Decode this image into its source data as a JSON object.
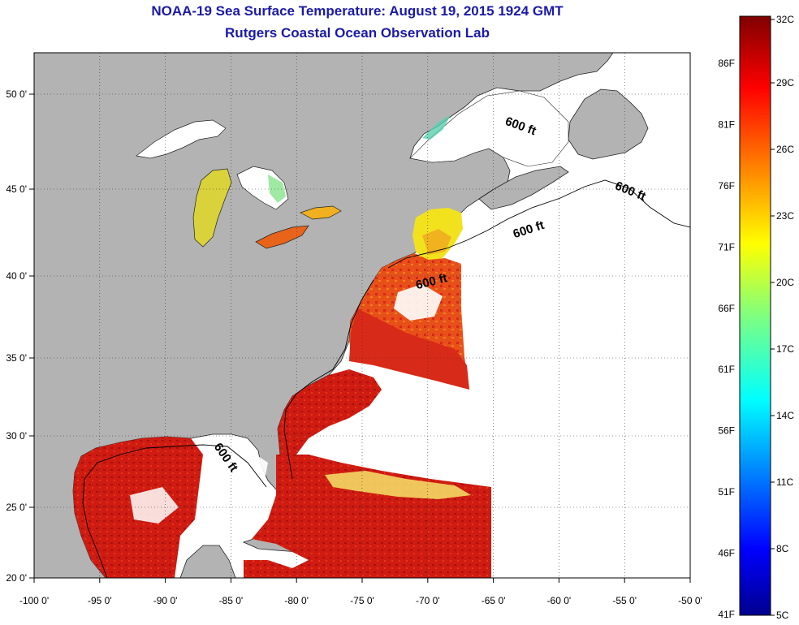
{
  "title": "NOAA-19 Sea Surface Temperature:  August 19, 2015 1924 GMT",
  "subtitle": "Rutgers Coastal Ocean Observation Lab",
  "lon_ticks": [
    "-100 0'",
    "-95 0'",
    "-90 0'",
    "-85 0'",
    "-80 0'",
    "-75 0'",
    "-70 0'",
    "-65 0'",
    "-60 0'",
    "-55 0'",
    "-50 0'"
  ],
  "lat_ticks": [
    "50 0'",
    "45 0'",
    "40 0'",
    "35 0'",
    "30 0'",
    "25 0'",
    "20 0'"
  ],
  "contour_label": "600 ft",
  "colorbar": {
    "celsius": [
      "32C",
      "29C",
      "26C",
      "23C",
      "20C",
      "17C",
      "14C",
      "11C",
      "8C",
      "5C"
    ],
    "fahrenheit": [
      "86F",
      "81F",
      "76F",
      "71F",
      "66F",
      "61F",
      "56F",
      "51F",
      "46F",
      "41F"
    ],
    "range_c": [
      5,
      32
    ]
  },
  "colors": {
    "land": "#b3b3b3",
    "no_data": "#ffffff",
    "warm_water": "#cc1a12",
    "title": "#1a1aa8"
  }
}
